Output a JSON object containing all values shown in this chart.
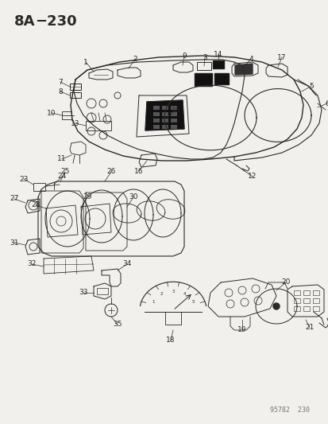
{
  "title": "8A−230",
  "watermark": "95782  230",
  "bg_color": "#f2f0ed",
  "line_color": "#2a2a2a",
  "title_fontsize": 13,
  "label_fontsize": 6.5
}
